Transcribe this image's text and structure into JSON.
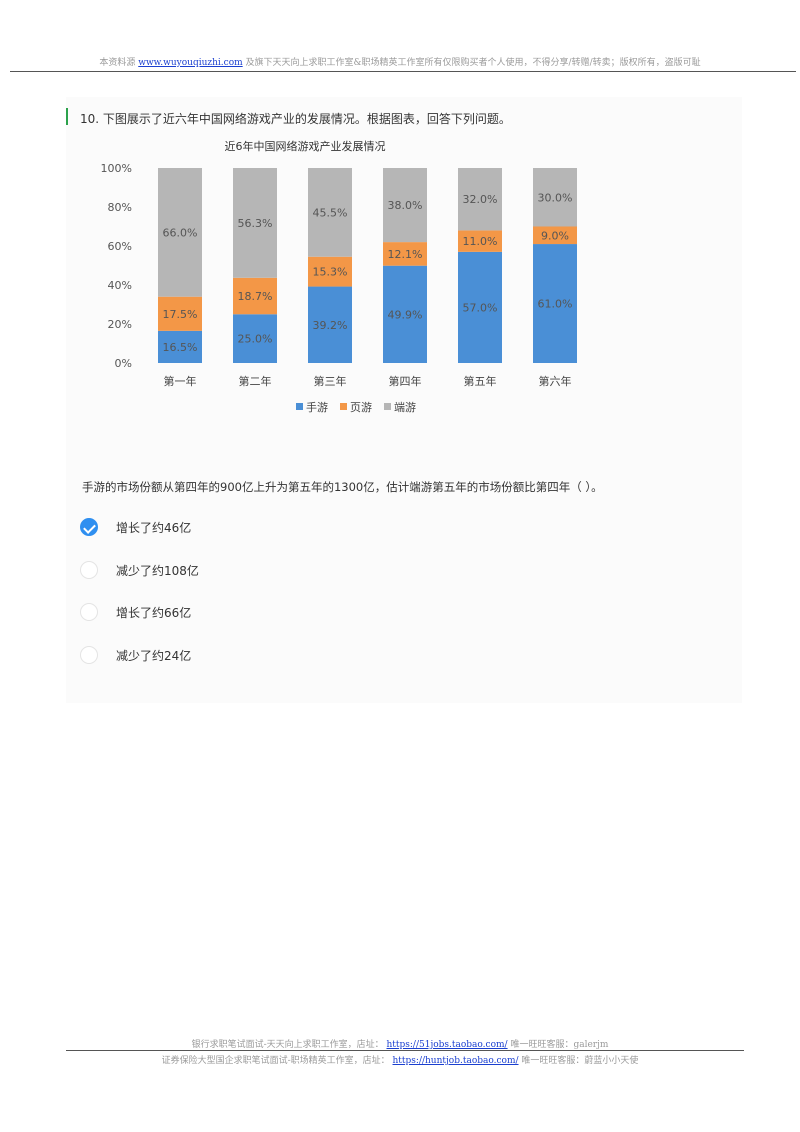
{
  "header": {
    "prefix": "本资料源",
    "link": "www.wuyouqiuzhi.com",
    "suffix": "及旗下天天向上求职工作室&职场精英工作室所有仅限购买者个人使用，不得分享/转赠/转卖；版权所有，盗版可耻"
  },
  "question": {
    "title": "10. 下图展示了近六年中国网络游戏产业的发展情况。根据图表，回答下列问题。",
    "text": "手游的市场份额从第四年的900亿上升为第五年的1300亿，估计端游第五年的市场份额比第四年（ ）。",
    "options": [
      {
        "label": "增长了约46亿",
        "selected": true
      },
      {
        "label": "减少了约108亿",
        "selected": false
      },
      {
        "label": "增长了约66亿",
        "selected": false
      },
      {
        "label": "减少了约24亿",
        "selected": false
      }
    ]
  },
  "chart_data": {
    "type": "bar",
    "stacked": true,
    "title": "近6年中国网络游戏产业发展情况",
    "categories": [
      "第一年",
      "第二年",
      "第三年",
      "第四年",
      "第五年",
      "第六年"
    ],
    "series": [
      {
        "name": "手游",
        "color": "#4a8fd6",
        "values": [
          16.5,
          25.0,
          39.2,
          49.9,
          57.0,
          61.0
        ],
        "labels": [
          "16.5%",
          "25.0%",
          "39.2%",
          "49.9%",
          "57.0%",
          "61.0%"
        ]
      },
      {
        "name": "页游",
        "color": "#f39747",
        "values": [
          17.5,
          18.7,
          15.3,
          12.1,
          11.0,
          9.0
        ],
        "labels": [
          "17.5%",
          "18.7%",
          "15.3%",
          "12.1%",
          "11.0%",
          "9.0%"
        ]
      },
      {
        "name": "端游",
        "color": "#b6b6b6",
        "values": [
          66.0,
          56.3,
          45.5,
          38.0,
          32.0,
          30.0
        ],
        "labels": [
          "66.0%",
          "56.3%",
          "45.5%",
          "38.0%",
          "32.0%",
          "30.0%"
        ]
      }
    ],
    "y_ticks": [
      "0%",
      "20%",
      "40%",
      "60%",
      "80%",
      "100%"
    ],
    "ylim": [
      0,
      100
    ],
    "grid": false,
    "legend_position": "bottom"
  },
  "footer": {
    "line1_prefix": "银行求职笔试面试-天天向上求职工作室，店址：",
    "line1_link": "https://51jobs.taobao.com/",
    "line1_suffix": "唯一旺旺客服：galerjm",
    "line2_prefix": "证券保险大型国企求职笔试面试-职场精英工作室，店址：",
    "line2_link": "https://huntjob.taobao.com/",
    "line2_suffix": "唯一旺旺客服：蔚蓝小小天使"
  }
}
